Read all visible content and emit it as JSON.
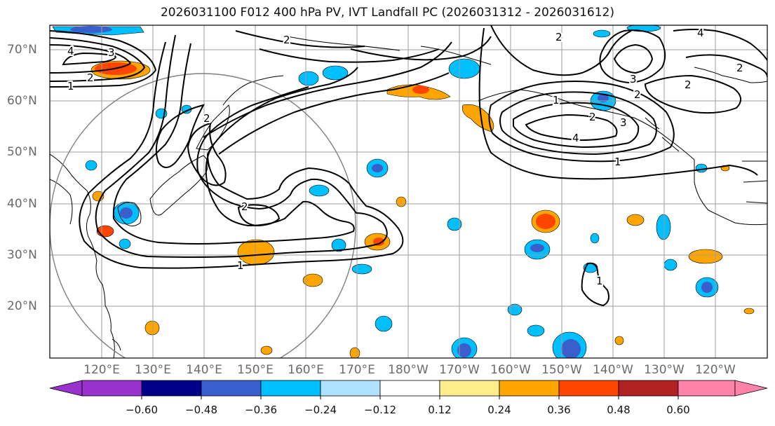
{
  "title": "2026031100 F012 400 hPa PV, IVT Landfall PC (2026031312 - 2026031612)",
  "lat_labels": [
    "70°N",
    "60°N",
    "50°N",
    "40°N",
    "30°N",
    "20°N"
  ],
  "lon_labels": [
    "120°E",
    "130°E",
    "140°E",
    "150°E",
    "160°E",
    "170°E",
    "180°W",
    "170°W",
    "160°W",
    "150°W",
    "140°W",
    "130°W",
    "120°W"
  ],
  "colorbar": {
    "tick_labels": [
      "−0.60",
      "−0.48",
      "−0.36",
      "−0.24",
      "−0.12",
      "0.12",
      "0.24",
      "0.36",
      "0.48",
      "0.60"
    ],
    "colors": {
      "below_min": "#9932cc",
      "neg_060_048": "#00008b",
      "neg_048_036": "#3a5fcd",
      "neg_036_024": "#00bfff",
      "neg_024_012": "#b0e2ff",
      "neutral": "#ffffff",
      "pos_012_024": "#ffec8b",
      "pos_024_036": "#ffa500",
      "pos_036_048": "#ff4500",
      "pos_048_060": "#b22222",
      "above_max": "#ff82ab"
    }
  },
  "contour_labels": [
    "1",
    "2",
    "3",
    "4",
    "2",
    "1",
    "2",
    "2",
    "2",
    "1",
    "2",
    "3",
    "4",
    "2",
    "3",
    "4",
    "1",
    "2",
    "2",
    "1"
  ],
  "colors": {
    "contour": "#000000",
    "grid": "#9e9e9e",
    "circle": "#7f7f7f",
    "coast": "#000000"
  }
}
